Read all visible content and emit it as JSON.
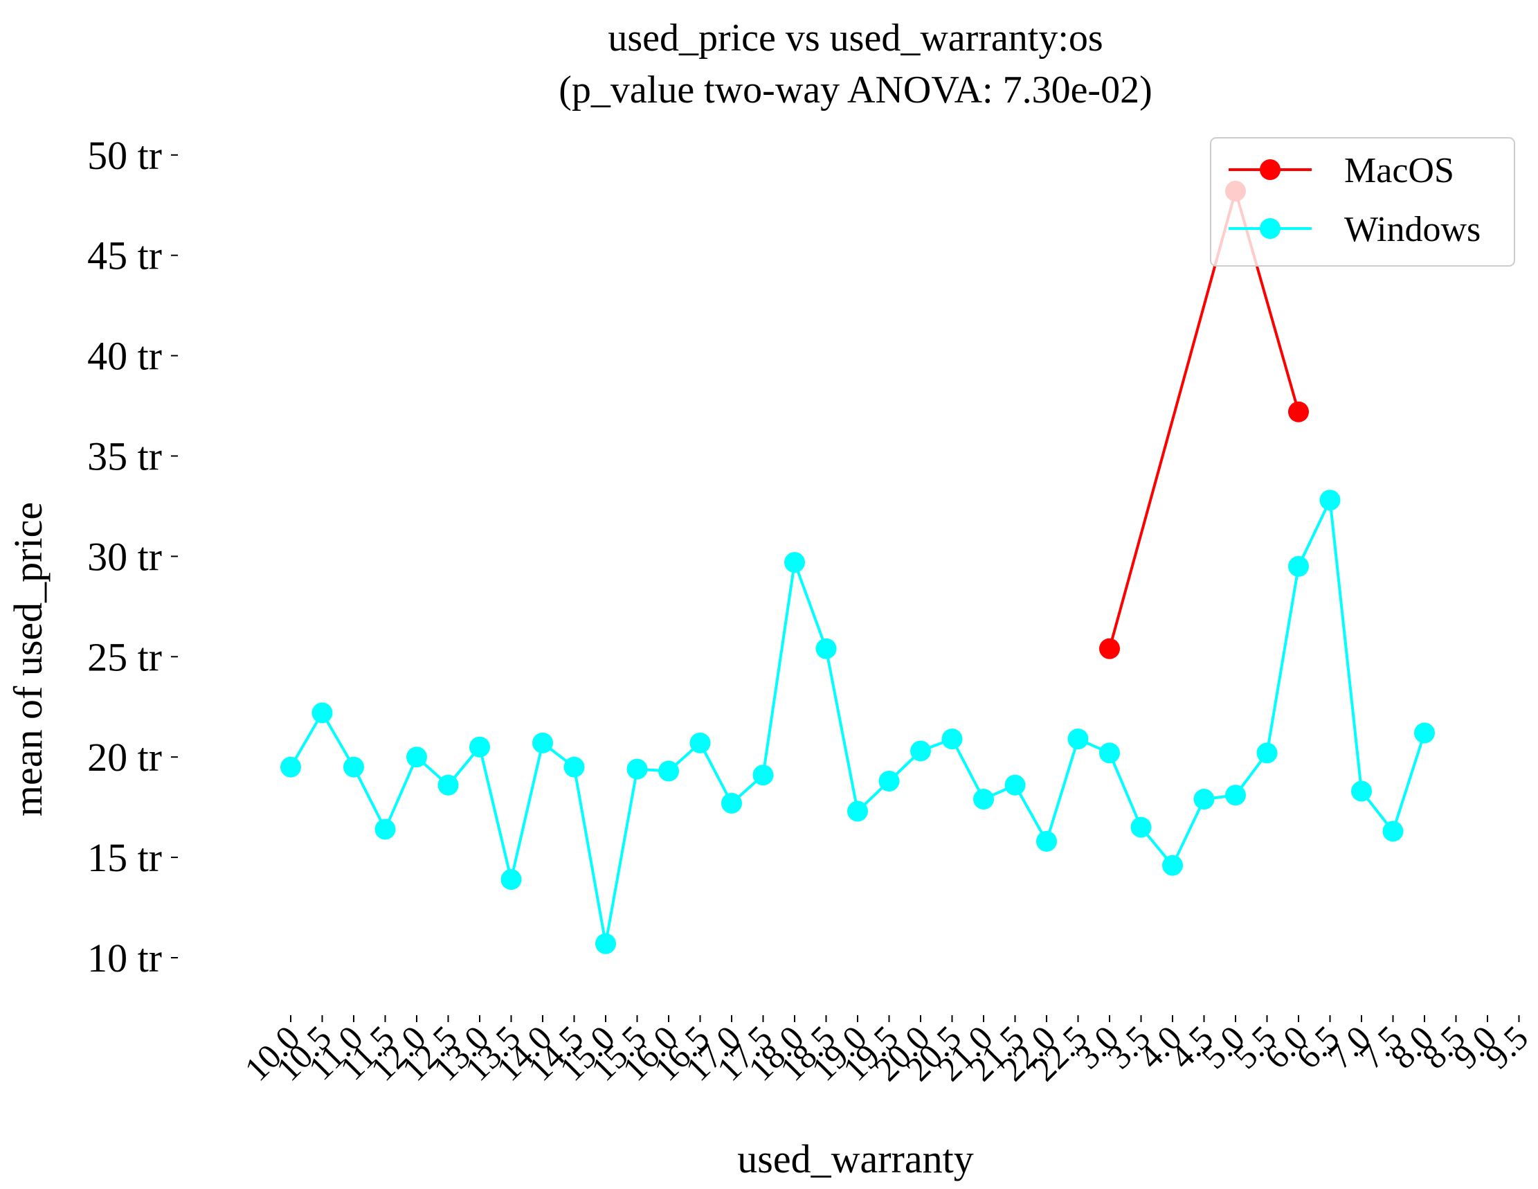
{
  "chart_data": {
    "type": "line",
    "title": "used_price vs used_warranty:os",
    "subtitle": "(p_value two-way ANOVA: 7.30e-02)",
    "xlabel": "used_warranty",
    "ylabel": "mean of used_price",
    "categories": [
      "10.0",
      "10.5",
      "11.0",
      "11.5",
      "12.0",
      "12.5",
      "13.0",
      "13.5",
      "14.0",
      "14.5",
      "15.0",
      "15.5",
      "16.0",
      "16.5",
      "17.0",
      "17.5",
      "18.0",
      "18.5",
      "19.0",
      "19.5",
      "20.0",
      "20.5",
      "21.0",
      "21.5",
      "22.0",
      "22.5",
      "3.0",
      "3.5",
      "4.0",
      "4.5",
      "5.0",
      "5.5",
      "6.0",
      "6.5",
      "7.0",
      "7.5",
      "8.0",
      "8.5",
      "9.0",
      "9.5"
    ],
    "ylim": [
      7,
      52
    ],
    "yticks": [
      10,
      15,
      20,
      25,
      30,
      35,
      40,
      45,
      50
    ],
    "ytick_labels": [
      "10 tr",
      "15 tr",
      "20 tr",
      "25 tr",
      "30 tr",
      "35 tr",
      "40 tr",
      "45 tr",
      "50 tr"
    ],
    "series": [
      {
        "name": "MacOS",
        "color": "#ff0000",
        "values": [
          null,
          null,
          null,
          null,
          null,
          null,
          null,
          null,
          null,
          null,
          null,
          null,
          null,
          null,
          null,
          null,
          null,
          null,
          null,
          null,
          null,
          null,
          null,
          null,
          null,
          null,
          25.4,
          null,
          null,
          null,
          48.2,
          null,
          37.2,
          null,
          null,
          null,
          null,
          null,
          null,
          null
        ]
      },
      {
        "name": "Windows",
        "color": "#00ffff",
        "values": [
          19.5,
          22.2,
          19.5,
          16.4,
          20.0,
          18.6,
          20.5,
          13.9,
          20.7,
          19.5,
          10.7,
          19.4,
          19.3,
          20.7,
          17.7,
          19.1,
          29.7,
          25.4,
          17.3,
          18.8,
          20.3,
          20.9,
          17.9,
          18.6,
          15.8,
          20.9,
          20.2,
          16.5,
          14.6,
          17.9,
          18.1,
          20.2,
          29.5,
          32.8,
          18.3,
          16.3,
          21.2,
          null,
          null,
          null
        ]
      }
    ],
    "legend": {
      "position": "top-right"
    },
    "grid": false
  }
}
